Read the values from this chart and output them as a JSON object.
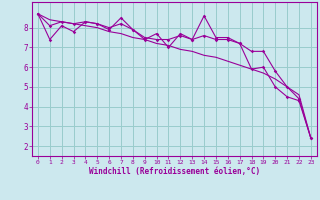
{
  "xlabel": "Windchill (Refroidissement éolien,°C)",
  "background_color": "#cce8ee",
  "line_color": "#990099",
  "grid_color": "#99cccc",
  "x_values": [
    0,
    1,
    2,
    3,
    4,
    5,
    6,
    7,
    8,
    9,
    10,
    11,
    12,
    13,
    14,
    15,
    16,
    17,
    18,
    19,
    20,
    21,
    22,
    23
  ],
  "y_line1": [
    8.7,
    7.4,
    8.1,
    7.8,
    8.3,
    8.2,
    7.9,
    8.5,
    7.9,
    7.4,
    7.7,
    7.0,
    7.7,
    7.4,
    8.6,
    7.5,
    7.5,
    7.2,
    5.9,
    6.0,
    5.0,
    4.5,
    4.3,
    2.4
  ],
  "y_line2": [
    8.7,
    8.1,
    8.3,
    8.2,
    8.3,
    8.2,
    8.0,
    8.2,
    7.9,
    7.5,
    7.4,
    7.4,
    7.6,
    7.4,
    7.6,
    7.4,
    7.4,
    7.2,
    6.8,
    6.8,
    5.8,
    5.0,
    4.4,
    2.4
  ],
  "y_line3": [
    8.7,
    8.4,
    8.3,
    8.2,
    8.1,
    8.0,
    7.8,
    7.7,
    7.5,
    7.4,
    7.2,
    7.1,
    6.9,
    6.8,
    6.6,
    6.5,
    6.3,
    6.1,
    5.9,
    5.7,
    5.4,
    5.0,
    4.6,
    2.4
  ],
  "ylim": [
    1.5,
    9.3
  ],
  "xlim": [
    -0.5,
    23.5
  ],
  "yticks": [
    2,
    3,
    4,
    5,
    6,
    7,
    8
  ],
  "xticks": [
    0,
    1,
    2,
    3,
    4,
    5,
    6,
    7,
    8,
    9,
    10,
    11,
    12,
    13,
    14,
    15,
    16,
    17,
    18,
    19,
    20,
    21,
    22,
    23
  ]
}
